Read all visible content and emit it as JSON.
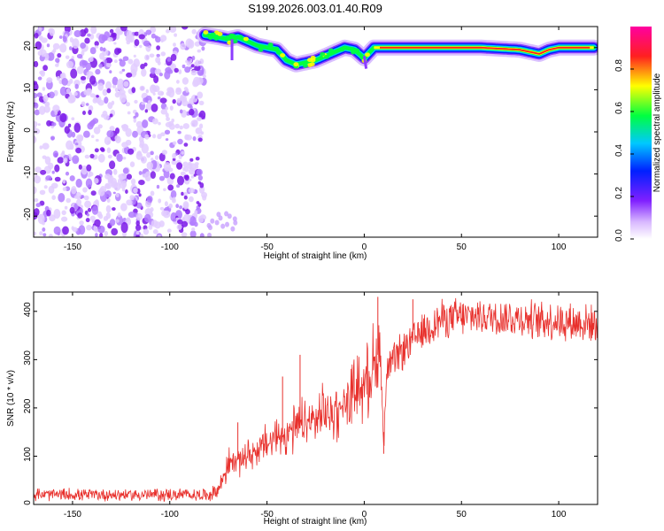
{
  "chart_data": [
    {
      "type": "spectrogram",
      "title": "S199.2026.003.01.40.R09",
      "xlabel": "Height of straight line (km)",
      "ylabel": "Frequency (Hz)",
      "xlim": [
        -170,
        120
      ],
      "ylim": [
        -25,
        25
      ],
      "xticks": [
        -150,
        -100,
        -50,
        0,
        50,
        100
      ],
      "yticks": [
        -20,
        -10,
        0,
        10,
        20
      ],
      "colorbar": {
        "label": "Normalized spectral amplitude",
        "range": [
          0.0,
          1.0
        ],
        "ticks": [
          0.0,
          0.2,
          0.4,
          0.6,
          0.8
        ],
        "colors": [
          "#ffffff",
          "#a040ff",
          "#0020ff",
          "#00c8ff",
          "#00ff40",
          "#ffff00",
          "#ff2020",
          "#ff00a0"
        ]
      },
      "noise_region": {
        "x": [
          -170,
          -82
        ],
        "y": [
          -25,
          25
        ]
      },
      "ridge": {
        "x": [
          -82,
          -75,
          -70,
          -65,
          -60,
          -55,
          -50,
          -45,
          -40,
          -35,
          -30,
          -25,
          -20,
          -15,
          -10,
          -5,
          0,
          5,
          10,
          20,
          40,
          60,
          80,
          90,
          95,
          100,
          110,
          118
        ],
        "y": [
          23,
          22.5,
          22,
          22.5,
          21.5,
          20.5,
          20,
          19.5,
          17,
          16,
          16.5,
          17,
          18,
          19,
          20,
          19.5,
          17.5,
          20,
          20,
          20,
          20,
          20,
          19.5,
          18.5,
          19.5,
          20,
          20,
          20
        ]
      }
    },
    {
      "type": "line",
      "title": "",
      "xlabel": "Height of straight line (km)",
      "ylabel": "SNR (10 * v/v)",
      "xlim": [
        -170,
        120
      ],
      "ylim": [
        0,
        440
      ],
      "xticks": [
        -150,
        -100,
        -50,
        0,
        50,
        100
      ],
      "yticks": [
        0,
        100,
        200,
        300,
        400
      ],
      "color": "#e8302c",
      "trend": {
        "x": [
          -170,
          -80,
          -75,
          -70,
          -60,
          -50,
          -40,
          -30,
          -20,
          -10,
          0,
          5,
          8,
          10,
          12,
          20,
          30,
          40,
          60,
          80,
          100,
          118
        ],
        "y": [
          20,
          20,
          30,
          85,
          100,
          125,
          150,
          165,
          185,
          210,
          255,
          290,
          320,
          150,
          280,
          320,
          360,
          385,
          390,
          385,
          380,
          375
        ]
      },
      "spikes": [
        {
          "x": -33,
          "y": 310
        },
        {
          "x": -42,
          "y": 265
        },
        {
          "x": -65,
          "y": 170
        },
        {
          "x": 7,
          "y": 430
        },
        {
          "x": 10,
          "y": 105
        },
        {
          "x": 25,
          "y": 425
        }
      ]
    }
  ]
}
